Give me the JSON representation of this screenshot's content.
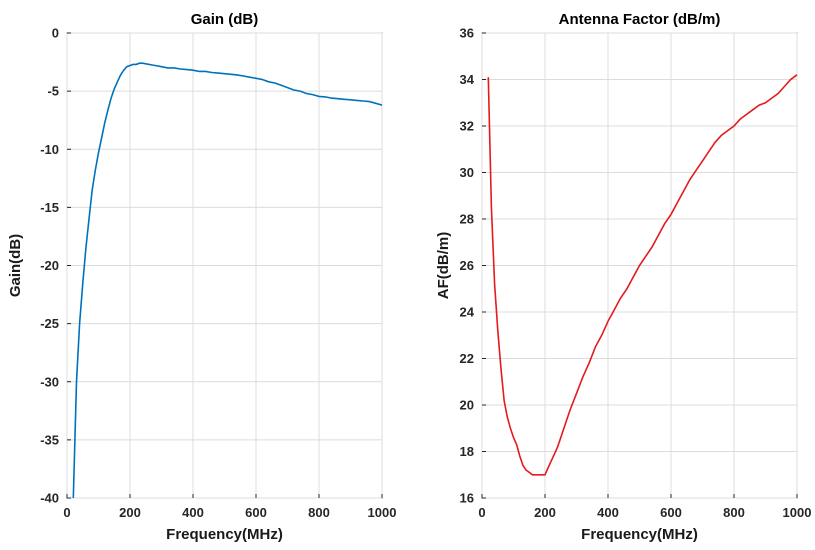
{
  "chart_data": [
    {
      "type": "line",
      "title": "Gain (dB)",
      "xlabel": "Frequency(MHz)",
      "ylabel": "Gain(dB)",
      "xlim": [
        0,
        1000
      ],
      "ylim": [
        -40,
        0
      ],
      "xticks": [
        "0",
        "200",
        "400",
        "600",
        "800",
        "1000"
      ],
      "yticks": [
        "-40",
        "-35",
        "-30",
        "-25",
        "-20",
        "-15",
        "-10",
        "-5",
        "0"
      ],
      "grid": true,
      "color": "#0072BD",
      "series": [
        {
          "x": [
            20,
            25,
            30,
            40,
            50,
            60,
            70,
            80,
            90,
            100,
            110,
            120,
            130,
            140,
            150,
            160,
            170,
            180,
            190,
            200,
            210,
            220,
            230,
            240,
            250,
            260,
            270,
            280,
            300,
            320,
            340,
            360,
            380,
            400,
            420,
            440,
            460,
            480,
            500,
            520,
            540,
            560,
            580,
            600,
            620,
            640,
            660,
            680,
            700,
            720,
            740,
            760,
            780,
            800,
            820,
            840,
            860,
            880,
            900,
            920,
            940,
            960,
            980,
            1000
          ],
          "y": [
            -40,
            -35,
            -30,
            -25,
            -21.5,
            -18.5,
            -16,
            -13.5,
            -11.8,
            -10.3,
            -9,
            -7.7,
            -6.6,
            -5.6,
            -4.8,
            -4.2,
            -3.6,
            -3.2,
            -2.9,
            -2.8,
            -2.7,
            -2.7,
            -2.6,
            -2.6,
            -2.65,
            -2.7,
            -2.75,
            -2.8,
            -2.9,
            -3.0,
            -3.0,
            -3.1,
            -3.15,
            -3.2,
            -3.3,
            -3.3,
            -3.4,
            -3.45,
            -3.5,
            -3.55,
            -3.6,
            -3.7,
            -3.8,
            -3.9,
            -4.0,
            -4.2,
            -4.3,
            -4.5,
            -4.7,
            -4.9,
            -5.0,
            -5.2,
            -5.3,
            -5.45,
            -5.5,
            -5.6,
            -5.65,
            -5.7,
            -5.75,
            -5.8,
            -5.85,
            -5.9,
            -6.05,
            -6.2
          ]
        }
      ]
    },
    {
      "type": "line",
      "title": "Antenna Factor (dB/m)",
      "xlabel": "Frequency(MHz)",
      "ylabel": "AF(dB/m)",
      "xlim": [
        0,
        1000
      ],
      "ylim": [
        16,
        36
      ],
      "xticks": [
        "0",
        "200",
        "400",
        "600",
        "800",
        "1000"
      ],
      "yticks": [
        "16",
        "18",
        "20",
        "22",
        "24",
        "26",
        "28",
        "30",
        "32",
        "34",
        "36"
      ],
      "grid": true,
      "color": "#E41A1C",
      "series": [
        {
          "x": [
            20,
            30,
            40,
            50,
            60,
            70,
            80,
            90,
            100,
            110,
            120,
            130,
            140,
            150,
            160,
            170,
            180,
            190,
            200,
            210,
            220,
            230,
            240,
            250,
            260,
            270,
            280,
            300,
            320,
            340,
            360,
            380,
            400,
            420,
            440,
            460,
            480,
            500,
            520,
            540,
            560,
            580,
            600,
            620,
            640,
            660,
            680,
            700,
            720,
            740,
            760,
            780,
            800,
            820,
            840,
            860,
            880,
            900,
            920,
            940,
            960,
            980,
            1000
          ],
          "y": [
            34.1,
            28.5,
            25.2,
            23.2,
            21.6,
            20.2,
            19.5,
            19.0,
            18.6,
            18.3,
            17.8,
            17.4,
            17.2,
            17.1,
            17.0,
            17.0,
            17.0,
            17.0,
            17.0,
            17.3,
            17.6,
            17.9,
            18.2,
            18.6,
            19.0,
            19.4,
            19.8,
            20.5,
            21.2,
            21.8,
            22.5,
            23.0,
            23.6,
            24.1,
            24.6,
            25.0,
            25.5,
            26.0,
            26.4,
            26.8,
            27.3,
            27.8,
            28.2,
            28.7,
            29.2,
            29.7,
            30.1,
            30.5,
            30.9,
            31.3,
            31.6,
            31.8,
            32.0,
            32.3,
            32.5,
            32.7,
            32.9,
            33.0,
            33.2,
            33.4,
            33.7,
            34.0,
            34.2
          ]
        }
      ]
    }
  ]
}
